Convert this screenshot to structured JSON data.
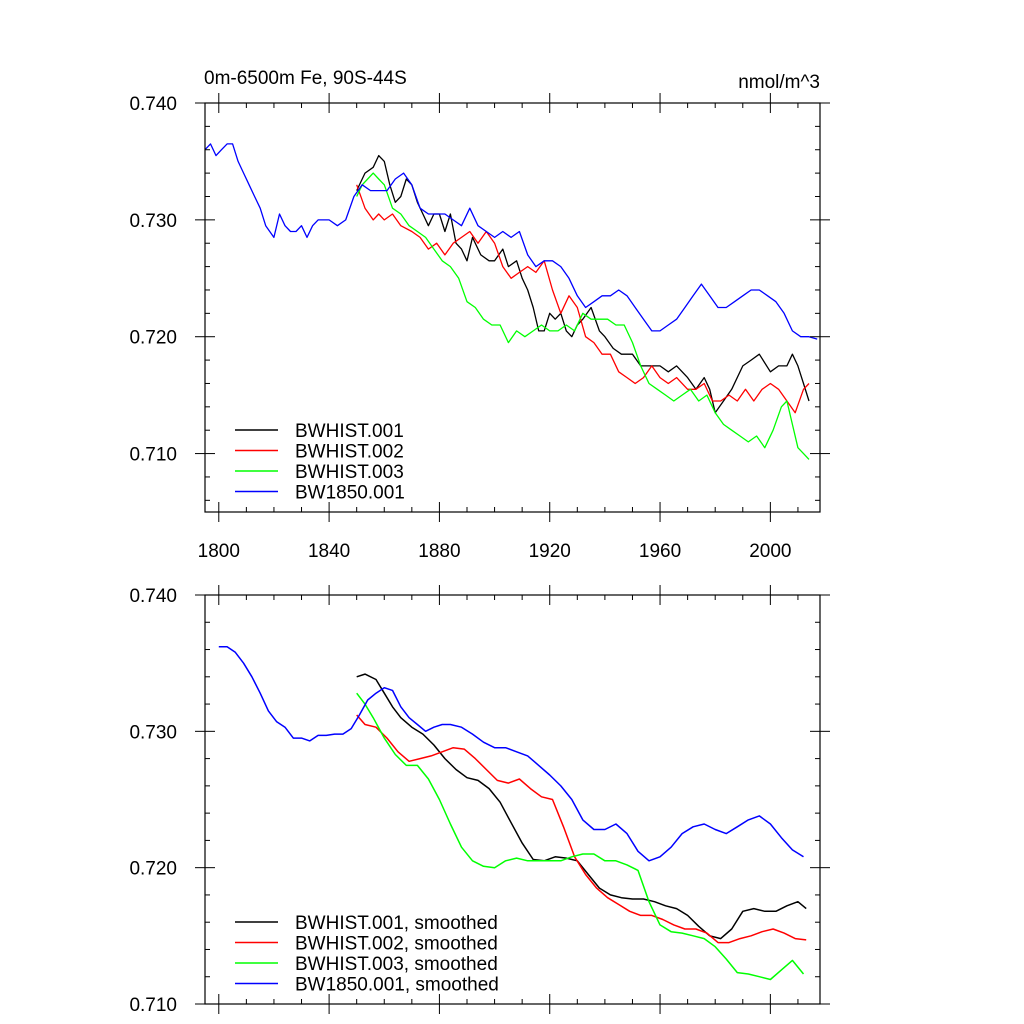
{
  "chart_data": [
    {
      "type": "line",
      "title_left": "0m-6500m Fe, 90S-44S",
      "title_right": "nmol/m^3",
      "xlim": [
        1795,
        2018
      ],
      "ylim": [
        0.705,
        0.74
      ],
      "xticks": [
        1800,
        1840,
        1880,
        1920,
        1960,
        2000
      ],
      "yticks": [
        "0.740",
        "0.730",
        "0.720",
        "0.710"
      ],
      "legend_position": "bottom-left",
      "series": [
        {
          "name": "BWHIST.001",
          "color": "#000000",
          "x": [
            1850,
            1853,
            1856,
            1858,
            1860,
            1862,
            1864,
            1866,
            1868,
            1870,
            1872,
            1874,
            1876,
            1878,
            1880,
            1882,
            1884,
            1886,
            1888,
            1890,
            1892,
            1895,
            1898,
            1900,
            1903,
            1905,
            1908,
            1910,
            1912,
            1914,
            1916,
            1918,
            1920,
            1922,
            1924,
            1926,
            1928,
            1930,
            1932,
            1935,
            1938,
            1940,
            1943,
            1946,
            1950,
            1953,
            1956,
            1960,
            1963,
            1966,
            1970,
            1973,
            1976,
            1978,
            1980,
            1983,
            1986,
            1990,
            1993,
            1996,
            2000,
            2003,
            2006,
            2008,
            2010,
            2012,
            2014
          ],
          "y": [
            0.7325,
            0.734,
            0.7345,
            0.7355,
            0.735,
            0.733,
            0.7315,
            0.732,
            0.7335,
            0.733,
            0.7315,
            0.7305,
            0.7295,
            0.7305,
            0.7305,
            0.729,
            0.7305,
            0.728,
            0.7275,
            0.7265,
            0.7285,
            0.727,
            0.7265,
            0.7265,
            0.7275,
            0.726,
            0.7265,
            0.725,
            0.724,
            0.7225,
            0.7205,
            0.7205,
            0.722,
            0.7215,
            0.722,
            0.7205,
            0.72,
            0.721,
            0.7215,
            0.7225,
            0.7205,
            0.72,
            0.719,
            0.7185,
            0.7185,
            0.7175,
            0.7175,
            0.7175,
            0.717,
            0.7175,
            0.7165,
            0.7155,
            0.7165,
            0.7155,
            0.7135,
            0.7145,
            0.7155,
            0.7175,
            0.718,
            0.7185,
            0.717,
            0.7175,
            0.7175,
            0.7185,
            0.7175,
            0.716,
            0.7145
          ]
        },
        {
          "name": "BWHIST.002",
          "color": "#ff0000",
          "x": [
            1850,
            1853,
            1856,
            1858,
            1860,
            1863,
            1866,
            1870,
            1873,
            1876,
            1879,
            1882,
            1885,
            1888,
            1891,
            1894,
            1897,
            1900,
            1903,
            1906,
            1909,
            1912,
            1915,
            1918,
            1921,
            1924,
            1927,
            1930,
            1933,
            1936,
            1939,
            1942,
            1945,
            1948,
            1951,
            1954,
            1957,
            1960,
            1963,
            1966,
            1970,
            1973,
            1976,
            1979,
            1982,
            1985,
            1988,
            1991,
            1994,
            1997,
            2000,
            2003,
            2006,
            2009,
            2012,
            2014
          ],
          "y": [
            0.733,
            0.731,
            0.73,
            0.7305,
            0.73,
            0.7305,
            0.7295,
            0.729,
            0.7285,
            0.7275,
            0.728,
            0.727,
            0.728,
            0.7285,
            0.729,
            0.728,
            0.729,
            0.728,
            0.726,
            0.725,
            0.7255,
            0.726,
            0.7255,
            0.7265,
            0.724,
            0.722,
            0.7235,
            0.7225,
            0.72,
            0.7195,
            0.7185,
            0.7185,
            0.717,
            0.7165,
            0.716,
            0.7165,
            0.7175,
            0.7165,
            0.716,
            0.7165,
            0.7155,
            0.7155,
            0.716,
            0.7145,
            0.7145,
            0.715,
            0.7145,
            0.7155,
            0.7145,
            0.7155,
            0.716,
            0.7155,
            0.7145,
            0.7135,
            0.7155,
            0.716
          ]
        },
        {
          "name": "BWHIST.003",
          "color": "#00ff00",
          "x": [
            1850,
            1852,
            1854,
            1856,
            1858,
            1860,
            1863,
            1866,
            1869,
            1872,
            1875,
            1878,
            1881,
            1884,
            1887,
            1890,
            1893,
            1896,
            1899,
            1902,
            1905,
            1908,
            1911,
            1914,
            1917,
            1920,
            1923,
            1926,
            1929,
            1932,
            1935,
            1938,
            1941,
            1944,
            1947,
            1950,
            1953,
            1956,
            1959,
            1962,
            1965,
            1968,
            1971,
            1974,
            1977,
            1980,
            1983,
            1986,
            1989,
            1992,
            1995,
            1998,
            2001,
            2004,
            2006,
            2008,
            2010,
            2012,
            2014
          ],
          "y": [
            0.732,
            0.733,
            0.7335,
            0.734,
            0.7335,
            0.733,
            0.731,
            0.7305,
            0.7295,
            0.729,
            0.7285,
            0.7275,
            0.7265,
            0.726,
            0.725,
            0.723,
            0.7225,
            0.7215,
            0.721,
            0.721,
            0.7195,
            0.7205,
            0.72,
            0.7205,
            0.721,
            0.7205,
            0.7205,
            0.721,
            0.7205,
            0.722,
            0.7215,
            0.7215,
            0.7215,
            0.721,
            0.721,
            0.7195,
            0.7175,
            0.716,
            0.7155,
            0.715,
            0.7145,
            0.715,
            0.7155,
            0.7145,
            0.715,
            0.7135,
            0.7125,
            0.712,
            0.7115,
            0.711,
            0.7115,
            0.7105,
            0.712,
            0.714,
            0.7145,
            0.7125,
            0.7105,
            0.71,
            0.7095
          ]
        },
        {
          "name": "BW1850.001",
          "color": "#0000ff",
          "x": [
            1795,
            1797,
            1799,
            1801,
            1803,
            1805,
            1807,
            1809,
            1811,
            1813,
            1815,
            1817,
            1820,
            1822,
            1824,
            1826,
            1828,
            1830,
            1832,
            1834,
            1836,
            1838,
            1840,
            1843,
            1846,
            1849,
            1852,
            1855,
            1858,
            1861,
            1864,
            1867,
            1870,
            1873,
            1876,
            1879,
            1882,
            1885,
            1888,
            1891,
            1894,
            1897,
            1900,
            1903,
            1906,
            1909,
            1912,
            1915,
            1918,
            1921,
            1924,
            1927,
            1930,
            1933,
            1936,
            1939,
            1942,
            1945,
            1948,
            1951,
            1954,
            1957,
            1960,
            1963,
            1966,
            1969,
            1972,
            1975,
            1978,
            1981,
            1984,
            1987,
            1990,
            1993,
            1996,
            1999,
            2002,
            2005,
            2008,
            2011,
            2014,
            2017
          ],
          "y": [
            0.736,
            0.7365,
            0.7355,
            0.736,
            0.7365,
            0.7365,
            0.735,
            0.734,
            0.733,
            0.732,
            0.731,
            0.7295,
            0.7285,
            0.7305,
            0.7295,
            0.729,
            0.729,
            0.7295,
            0.7285,
            0.7295,
            0.73,
            0.73,
            0.73,
            0.7295,
            0.73,
            0.732,
            0.733,
            0.7325,
            0.7325,
            0.7325,
            0.7335,
            0.734,
            0.733,
            0.731,
            0.7305,
            0.7305,
            0.7305,
            0.73,
            0.7295,
            0.731,
            0.7295,
            0.729,
            0.7285,
            0.729,
            0.7285,
            0.729,
            0.727,
            0.726,
            0.7265,
            0.7265,
            0.726,
            0.725,
            0.7235,
            0.7225,
            0.723,
            0.7235,
            0.7235,
            0.724,
            0.7235,
            0.7225,
            0.7215,
            0.7205,
            0.7205,
            0.721,
            0.7215,
            0.7225,
            0.7235,
            0.7245,
            0.7235,
            0.7225,
            0.7225,
            0.723,
            0.7235,
            0.724,
            0.724,
            0.7235,
            0.723,
            0.722,
            0.7205,
            0.72,
            0.72,
            0.7198
          ]
        }
      ]
    },
    {
      "type": "line",
      "xlim": [
        1795,
        2018
      ],
      "ylim": [
        0.71,
        0.74
      ],
      "yticks": [
        "0.740",
        "0.730",
        "0.720",
        "0.710"
      ],
      "legend_position": "bottom-left",
      "series": [
        {
          "name": "BWHIST.001, smoothed",
          "color": "#000000",
          "x": [
            1850,
            1853,
            1857,
            1860,
            1863,
            1866,
            1870,
            1874,
            1878,
            1882,
            1886,
            1890,
            1894,
            1898,
            1902,
            1906,
            1910,
            1914,
            1918,
            1922,
            1926,
            1930,
            1934,
            1938,
            1942,
            1946,
            1950,
            1954,
            1958,
            1962,
            1966,
            1970,
            1974,
            1978,
            1982,
            1986,
            1990,
            1994,
            1998,
            2002,
            2006,
            2010,
            2013
          ],
          "y": [
            0.734,
            0.7342,
            0.7338,
            0.7328,
            0.7318,
            0.731,
            0.7303,
            0.7298,
            0.729,
            0.728,
            0.7272,
            0.7266,
            0.7264,
            0.7258,
            0.7248,
            0.7233,
            0.7218,
            0.7206,
            0.7205,
            0.7208,
            0.7207,
            0.7205,
            0.7195,
            0.7185,
            0.718,
            0.7178,
            0.7177,
            0.7177,
            0.7175,
            0.7172,
            0.717,
            0.7165,
            0.7157,
            0.715,
            0.7148,
            0.7155,
            0.7168,
            0.717,
            0.7168,
            0.7168,
            0.7172,
            0.7175,
            0.717
          ]
        },
        {
          "name": "BWHIST.002, smoothed",
          "color": "#ff0000",
          "x": [
            1850,
            1853,
            1857,
            1861,
            1865,
            1869,
            1873,
            1877,
            1881,
            1885,
            1889,
            1893,
            1897,
            1901,
            1905,
            1909,
            1913,
            1917,
            1921,
            1925,
            1929,
            1933,
            1937,
            1941,
            1945,
            1949,
            1953,
            1957,
            1961,
            1965,
            1969,
            1973,
            1977,
            1981,
            1985,
            1989,
            1993,
            1997,
            2001,
            2005,
            2009,
            2013
          ],
          "y": [
            0.7312,
            0.7305,
            0.7303,
            0.7295,
            0.7285,
            0.7278,
            0.728,
            0.7282,
            0.7285,
            0.7288,
            0.7287,
            0.728,
            0.7272,
            0.7264,
            0.7262,
            0.7265,
            0.7258,
            0.7252,
            0.725,
            0.723,
            0.7208,
            0.7195,
            0.7185,
            0.7178,
            0.7173,
            0.7168,
            0.7165,
            0.7165,
            0.7162,
            0.7158,
            0.7155,
            0.7155,
            0.7152,
            0.7145,
            0.7145,
            0.7148,
            0.715,
            0.7153,
            0.7155,
            0.7152,
            0.7148,
            0.7147
          ]
        },
        {
          "name": "BWHIST.003, smoothed",
          "color": "#00ff00",
          "x": [
            1850,
            1853,
            1856,
            1860,
            1864,
            1868,
            1872,
            1876,
            1880,
            1884,
            1888,
            1892,
            1896,
            1900,
            1904,
            1908,
            1912,
            1916,
            1920,
            1924,
            1928,
            1932,
            1936,
            1940,
            1944,
            1948,
            1952,
            1956,
            1960,
            1964,
            1968,
            1972,
            1976,
            1980,
            1984,
            1988,
            1992,
            1996,
            2000,
            2004,
            2008,
            2012
          ],
          "y": [
            0.7328,
            0.732,
            0.731,
            0.7295,
            0.7283,
            0.7275,
            0.7275,
            0.7265,
            0.725,
            0.7232,
            0.7215,
            0.7205,
            0.7201,
            0.72,
            0.7205,
            0.7207,
            0.7205,
            0.7205,
            0.7205,
            0.7205,
            0.7208,
            0.721,
            0.721,
            0.7205,
            0.7205,
            0.7202,
            0.7198,
            0.7175,
            0.7158,
            0.7153,
            0.7152,
            0.715,
            0.7148,
            0.7142,
            0.7133,
            0.7123,
            0.7122,
            0.712,
            0.7118,
            0.7125,
            0.7132,
            0.7122
          ]
        },
        {
          "name": "BW1850.001, smoothed",
          "color": "#0000ff",
          "x": [
            1800,
            1803,
            1806,
            1809,
            1812,
            1815,
            1818,
            1821,
            1824,
            1827,
            1830,
            1833,
            1836,
            1839,
            1842,
            1845,
            1848,
            1851,
            1854,
            1857,
            1860,
            1863,
            1866,
            1869,
            1872,
            1875,
            1878,
            1881,
            1884,
            1888,
            1892,
            1896,
            1900,
            1904,
            1908,
            1912,
            1916,
            1920,
            1924,
            1928,
            1932,
            1936,
            1940,
            1944,
            1948,
            1952,
            1956,
            1960,
            1964,
            1968,
            1972,
            1976,
            1980,
            1984,
            1988,
            1992,
            1996,
            2000,
            2004,
            2008,
            2012
          ],
          "y": [
            0.7362,
            0.7362,
            0.7358,
            0.735,
            0.734,
            0.7328,
            0.7315,
            0.7307,
            0.7303,
            0.7295,
            0.7295,
            0.7293,
            0.7297,
            0.7297,
            0.7298,
            0.7298,
            0.7302,
            0.7312,
            0.7323,
            0.7328,
            0.7332,
            0.733,
            0.7318,
            0.731,
            0.7305,
            0.73,
            0.7303,
            0.7305,
            0.7305,
            0.7303,
            0.7298,
            0.7292,
            0.7288,
            0.7288,
            0.7285,
            0.7282,
            0.7275,
            0.7268,
            0.726,
            0.725,
            0.7235,
            0.7228,
            0.7228,
            0.7232,
            0.7225,
            0.7212,
            0.7205,
            0.7208,
            0.7215,
            0.7225,
            0.723,
            0.7232,
            0.7228,
            0.7225,
            0.723,
            0.7235,
            0.7238,
            0.7232,
            0.7222,
            0.7213,
            0.7208
          ]
        }
      ]
    }
  ]
}
